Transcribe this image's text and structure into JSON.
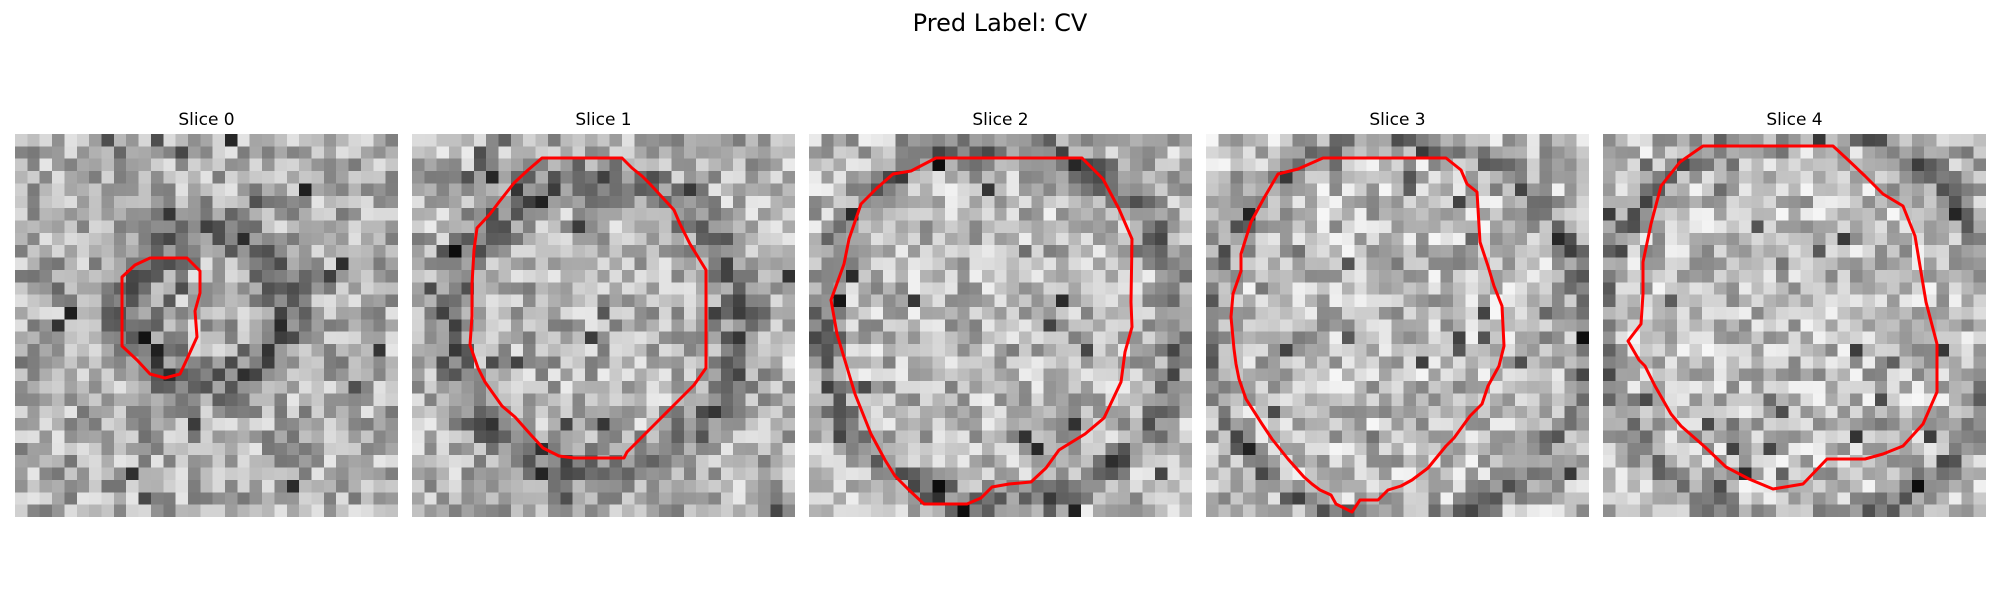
{
  "figure": {
    "suptitle": "Pred Label: CV",
    "contour_color": "#ff0000"
  },
  "panels": [
    {
      "title": "Slice 0"
    },
    {
      "title": "Slice 1"
    },
    {
      "title": "Slice 2"
    },
    {
      "title": "Slice 3"
    },
    {
      "title": "Slice 4"
    }
  ]
}
